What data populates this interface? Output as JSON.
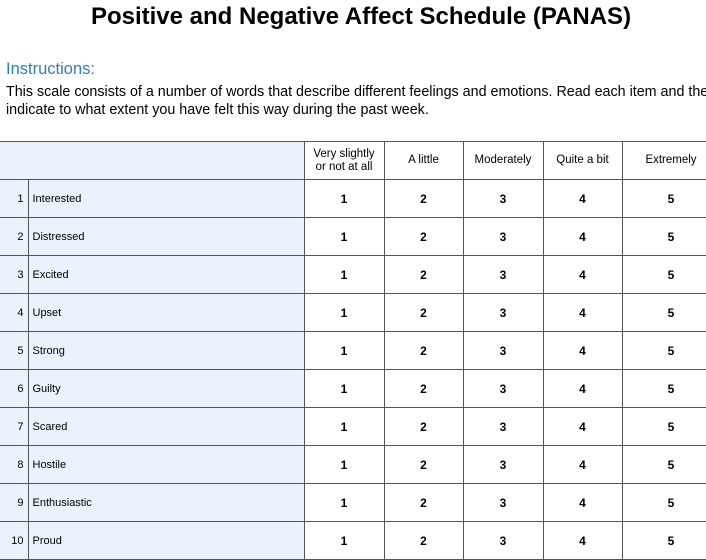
{
  "title": "Positive and Negative Affect Schedule (PANAS)",
  "instructions": {
    "heading": "Instructions:",
    "text": "This scale consists of a number of words that describe different feelings and emotions. Read each item and then indicate to what extent you have felt this way during the past week."
  },
  "table": {
    "columns": [
      {
        "line1": "Very slightly",
        "line2": "or not at all"
      },
      {
        "line1": "A little",
        "line2": ""
      },
      {
        "line1": "Moderately",
        "line2": ""
      },
      {
        "line1": "Quite a bit",
        "line2": ""
      },
      {
        "line1": "Extremely",
        "line2": ""
      }
    ],
    "rows": [
      {
        "num": "1",
        "item": "Interested",
        "values": [
          "1",
          "2",
          "3",
          "4",
          "5"
        ]
      },
      {
        "num": "2",
        "item": "Distressed",
        "values": [
          "1",
          "2",
          "3",
          "4",
          "5"
        ]
      },
      {
        "num": "3",
        "item": "Excited",
        "values": [
          "1",
          "2",
          "3",
          "4",
          "5"
        ]
      },
      {
        "num": "4",
        "item": "Upset",
        "values": [
          "1",
          "2",
          "3",
          "4",
          "5"
        ]
      },
      {
        "num": "5",
        "item": "Strong",
        "values": [
          "1",
          "2",
          "3",
          "4",
          "5"
        ]
      },
      {
        "num": "6",
        "item": "Guilty",
        "values": [
          "1",
          "2",
          "3",
          "4",
          "5"
        ]
      },
      {
        "num": "7",
        "item": "Scared",
        "values": [
          "1",
          "2",
          "3",
          "4",
          "5"
        ]
      },
      {
        "num": "8",
        "item": "Hostile",
        "values": [
          "1",
          "2",
          "3",
          "4",
          "5"
        ]
      },
      {
        "num": "9",
        "item": "Enthusiastic",
        "values": [
          "1",
          "2",
          "3",
          "4",
          "5"
        ]
      },
      {
        "num": "10",
        "item": "Proud",
        "values": [
          "1",
          "2",
          "3",
          "4",
          "5"
        ]
      }
    ]
  },
  "colors": {
    "heading_blue": "#2f7fb7",
    "label_shade": "#eaf3fb"
  }
}
